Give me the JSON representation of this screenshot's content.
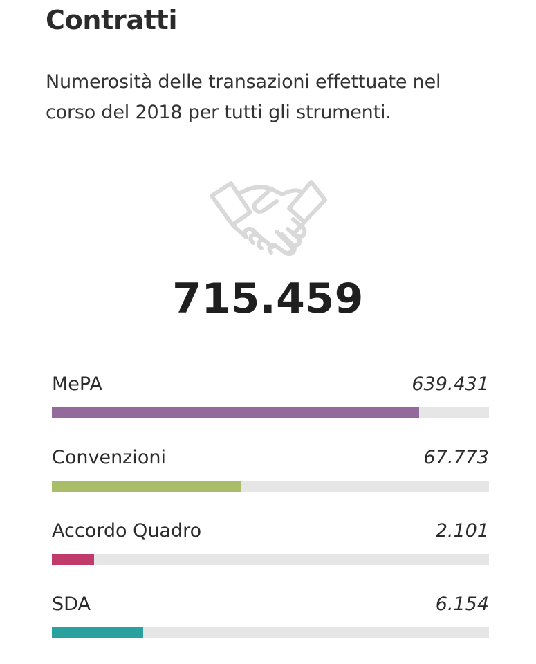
{
  "header": {
    "title": "Contratti",
    "subtitle": "Numerosità delle transazioni effettuate nel corso del 2018 per tutti gli strumenti."
  },
  "hero": {
    "icon": "handshake-icon",
    "total": "715.459"
  },
  "instruments": [
    {
      "label": "MePA",
      "value": "639.431",
      "fill_percent": 84,
      "color": "#936a9b"
    },
    {
      "label": "Convenzioni",
      "value": "67.773",
      "fill_percent": 43.3,
      "color": "#a9bc6a"
    },
    {
      "label": "Accordo Quadro",
      "value": "2.101",
      "fill_percent": 9.7,
      "color": "#c03b6a"
    },
    {
      "label": "SDA",
      "value": "6.154",
      "fill_percent": 20.9,
      "color": "#2aa19f"
    }
  ]
}
